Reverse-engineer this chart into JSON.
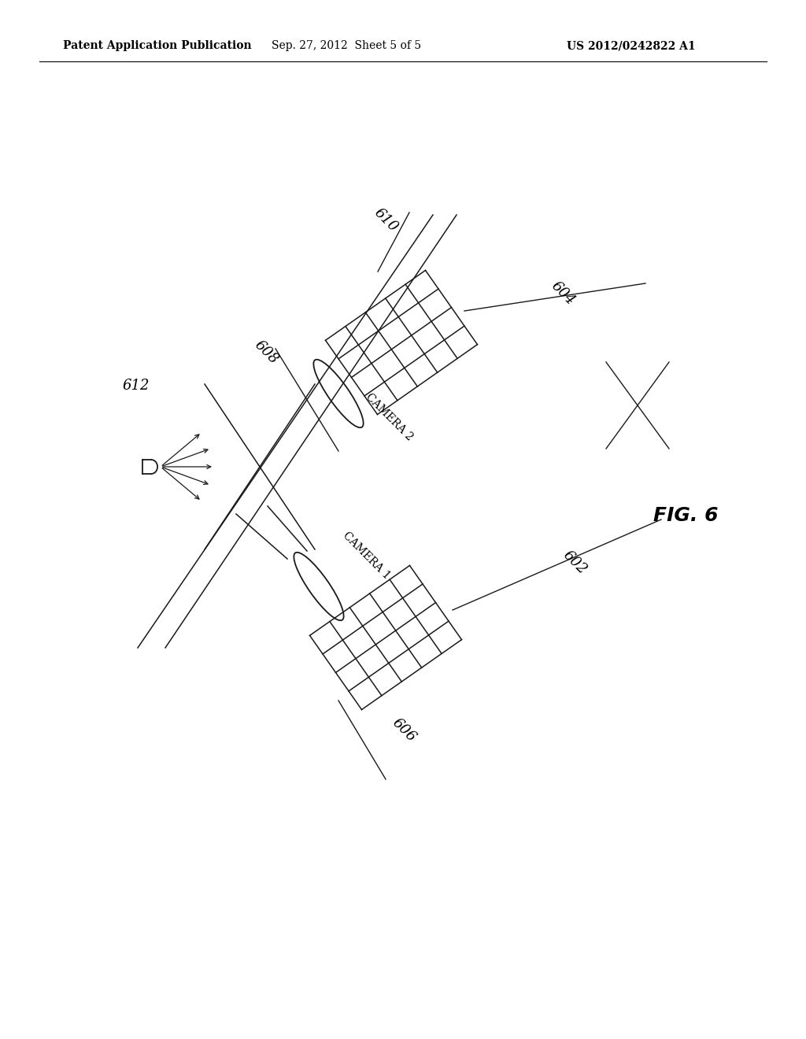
{
  "bg_color": "#ffffff",
  "line_color": "#1a1a1a",
  "header_left": "Patent Application Publication",
  "header_mid": "Sep. 27, 2012  Sheet 5 of 5",
  "header_right": "US 2012/0242822 A1",
  "fig_label": "FIG. 6"
}
